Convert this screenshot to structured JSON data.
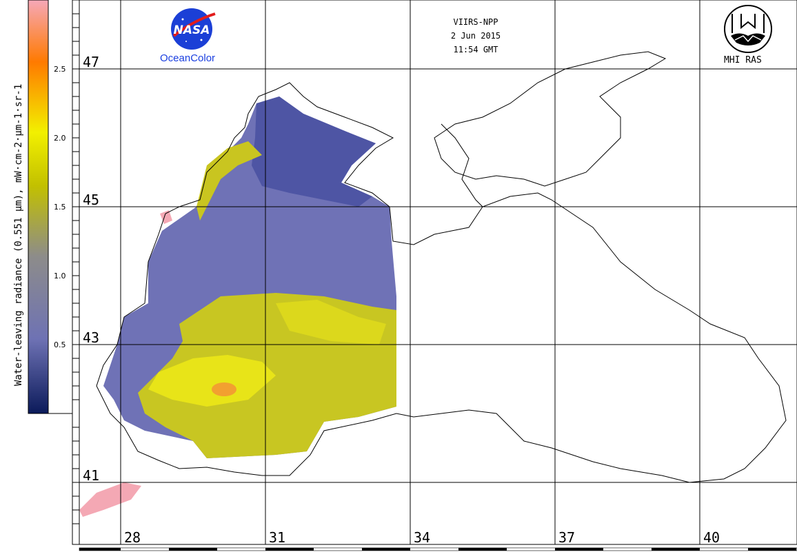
{
  "header": {
    "sensor": "VIIRS-NPP",
    "date": "2 Jun 2015",
    "time": "11:54 GMT"
  },
  "logos": {
    "left_brand": "NASA",
    "left_caption": "OceanColor",
    "right_caption": "MHI RAS"
  },
  "colorbar": {
    "title": "Water-leaving radiance (0.551 μm), mW·cm-2·μm-1·sr-1",
    "ticks": [
      "2.5",
      "2.0",
      "1.5",
      "1.0",
      "0.5"
    ],
    "tick_values": [
      2.5,
      2.0,
      1.5,
      1.0,
      0.5
    ],
    "range": [
      0,
      3.0
    ],
    "colors": [
      "#0b1a5a",
      "#6e72b4",
      "#a4a060",
      "#f2f000",
      "#ff7a00",
      "#f4a0b0"
    ]
  },
  "grid": {
    "latitudes": [
      "47",
      "45",
      "43",
      "41"
    ],
    "longitudes": [
      "28",
      "31",
      "34",
      "37",
      "40"
    ]
  }
}
